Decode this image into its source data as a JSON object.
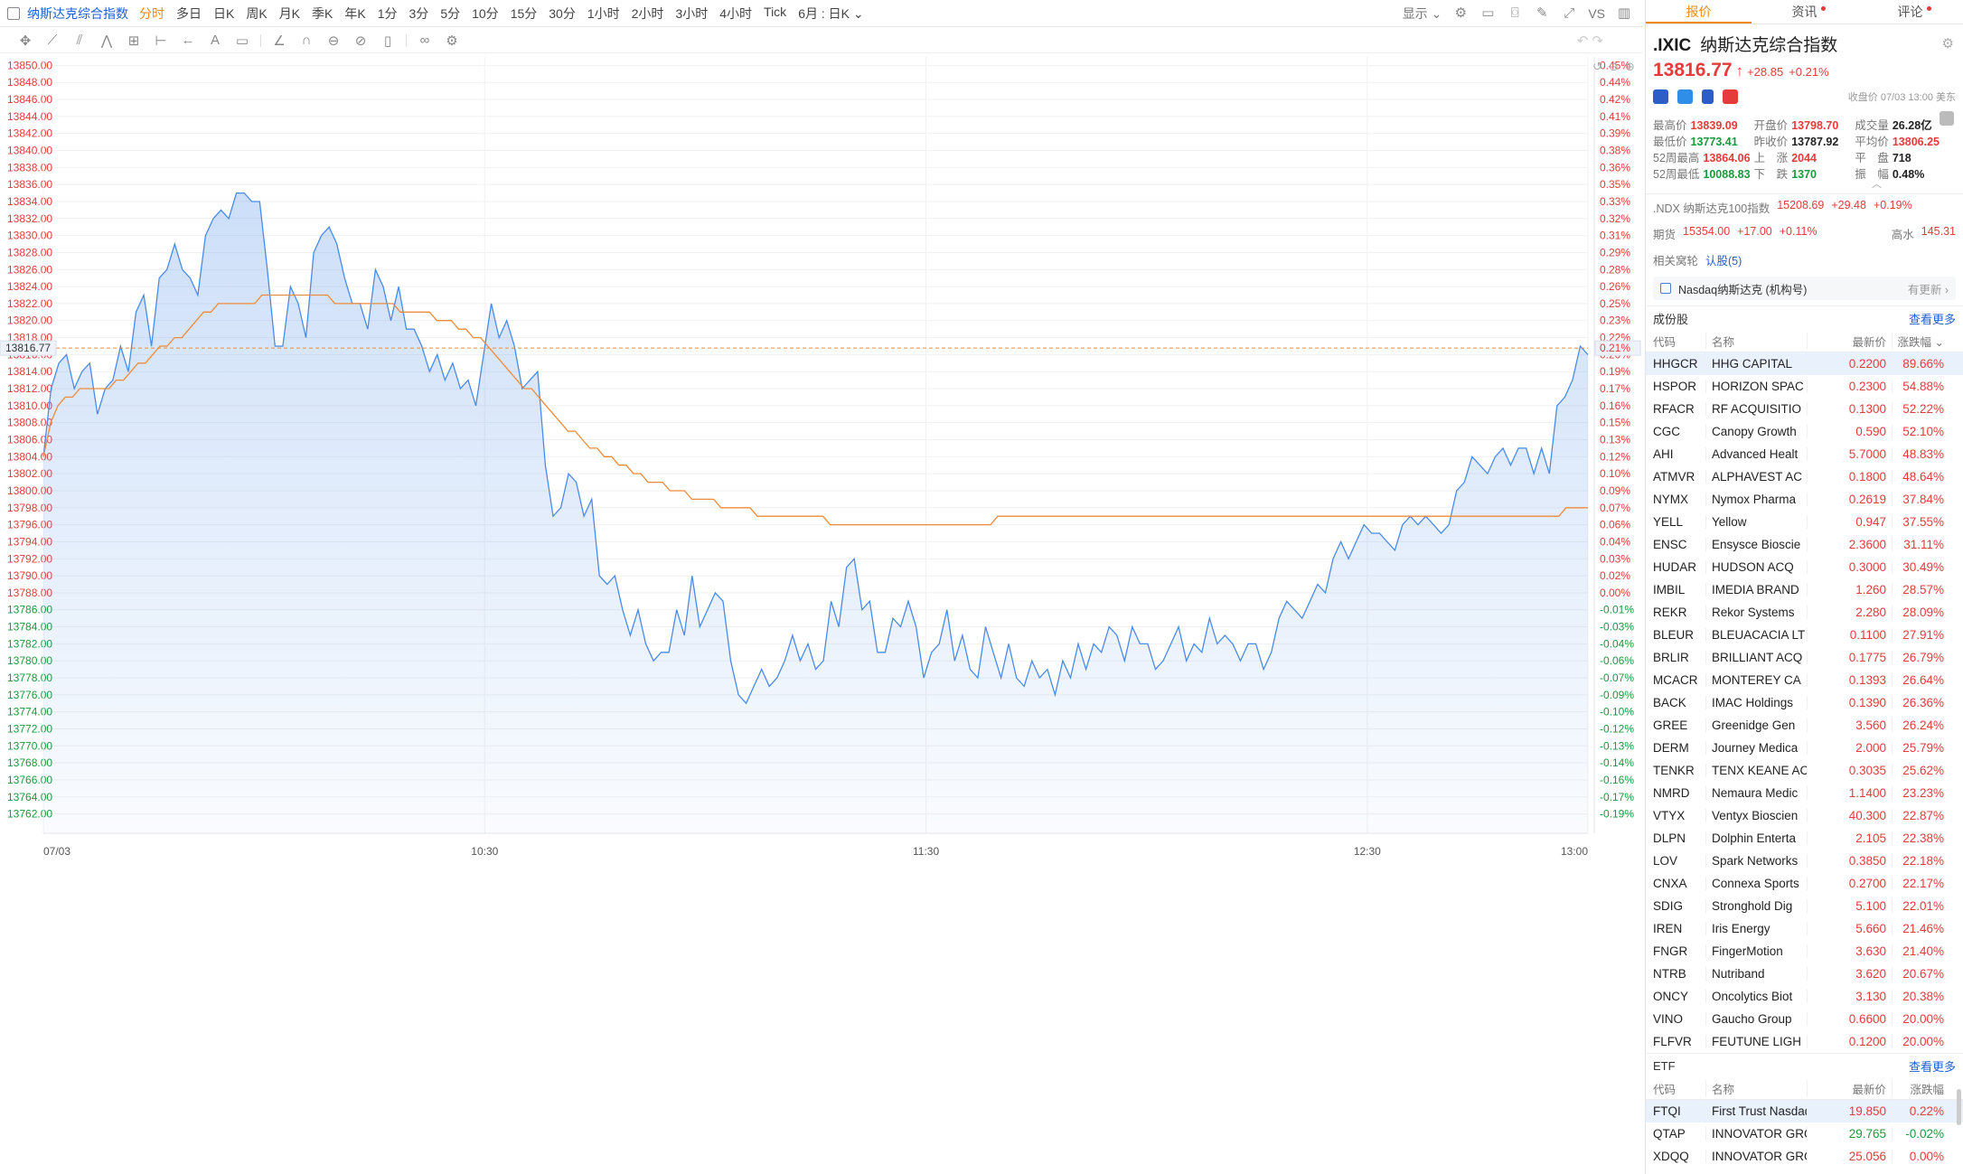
{
  "topbar": {
    "symbol": "纳斯达克综合指数",
    "periods": [
      "分时",
      "多日",
      "日K",
      "周K",
      "月K",
      "季K",
      "年K",
      "1分",
      "3分",
      "5分",
      "10分",
      "15分",
      "30分",
      "1小时",
      "2小时",
      "3小时",
      "4小时",
      "Tick"
    ],
    "active_period": "分时",
    "period_select": "6月 : 日K",
    "display_label": "显示",
    "vs_label": "VS"
  },
  "chart_data": {
    "type": "line",
    "series": [
      {
        "name": "price",
        "color": "#4a8be8"
      },
      {
        "name": "avg",
        "color": "#f08b3c"
      }
    ],
    "prev_close": 13787.92,
    "current": 13816.77,
    "current_label": "13816.77",
    "current_pct_label": "0.21%",
    "ylim": [
      13761,
      13851
    ],
    "xlim_minutes": [
      0,
      210
    ],
    "x_ticks": [
      {
        "t": 0,
        "label": "07/03"
      },
      {
        "t": 60,
        "label": "10:30"
      },
      {
        "t": 120,
        "label": "11:30"
      },
      {
        "t": 180,
        "label": "12:30"
      },
      {
        "t": 210,
        "label": "13:00"
      }
    ],
    "y_ticks": [
      "13850.00",
      "13848.00",
      "13846.00",
      "13844.00",
      "13842.00",
      "13840.00",
      "13838.00",
      "13836.00",
      "13834.00",
      "13832.00",
      "13830.00",
      "13828.00",
      "13826.00",
      "13824.00",
      "13822.00",
      "13820.00",
      "13818.00",
      "13816.00",
      "13814.00",
      "13812.00",
      "13810.00",
      "13808.00",
      "13806.00",
      "13804.00",
      "13802.00",
      "13800.00",
      "13798.00",
      "13796.00",
      "13794.00",
      "13792.00",
      "13790.00",
      "13788.00",
      "13786.00",
      "13784.00",
      "13782.00",
      "13780.00",
      "13778.00",
      "13776.00",
      "13774.00",
      "13772.00",
      "13770.00",
      "13768.00",
      "13766.00",
      "13764.00",
      "13762.00"
    ],
    "pct_ticks": [
      "0.45%",
      "0.44%",
      "0.42%",
      "0.41%",
      "0.39%",
      "0.38%",
      "0.36%",
      "0.35%",
      "0.33%",
      "0.32%",
      "0.31%",
      "0.29%",
      "0.28%",
      "0.26%",
      "0.25%",
      "0.23%",
      "0.22%",
      "0.20%",
      "0.19%",
      "0.17%",
      "0.16%",
      "0.15%",
      "0.13%",
      "0.12%",
      "0.10%",
      "0.09%",
      "0.07%",
      "0.06%",
      "0.04%",
      "0.03%",
      "0.02%",
      "0.00%",
      "-0.01%",
      "-0.03%",
      "-0.04%",
      "-0.06%",
      "-0.07%",
      "-0.09%",
      "-0.10%",
      "-0.12%",
      "-0.13%",
      "-0.14%",
      "-0.16%",
      "-0.17%",
      "-0.19%"
    ],
    "price": [
      13804,
      13812,
      13815,
      13816,
      13812,
      13814,
      13815,
      13809,
      13812,
      13813,
      13817,
      13814,
      13821,
      13823,
      13817,
      13825,
      13826,
      13829,
      13826,
      13825,
      13823,
      13830,
      13832,
      13833,
      13832,
      13835,
      13835,
      13834,
      13834,
      13826,
      13817,
      13817,
      13824,
      13822,
      13818,
      13828,
      13830,
      13831,
      13829,
      13825,
      13822,
      13822,
      13819,
      13826,
      13824,
      13820,
      13824,
      13819,
      13819,
      13817,
      13814,
      13816,
      13813,
      13815,
      13812,
      13813,
      13810,
      13816,
      13822,
      13818,
      13820,
      13817,
      13812,
      13813,
      13814,
      13803,
      13797,
      13798,
      13802,
      13801,
      13797,
      13799,
      13790,
      13789,
      13790,
      13786,
      13783,
      13786,
      13782,
      13780,
      13781,
      13781,
      13786,
      13783,
      13790,
      13784,
      13786,
      13788,
      13787,
      13780,
      13776,
      13775,
      13777,
      13779,
      13777,
      13778,
      13780,
      13783,
      13780,
      13782,
      13779,
      13780,
      13787,
      13784,
      13791,
      13792,
      13786,
      13787,
      13781,
      13781,
      13785,
      13784,
      13787,
      13784,
      13778,
      13781,
      13782,
      13786,
      13780,
      13783,
      13779,
      13778,
      13784,
      13781,
      13778,
      13782,
      13778,
      13777,
      13780,
      13778,
      13779,
      13776,
      13780,
      13778,
      13782,
      13779,
      13782,
      13781,
      13784,
      13783,
      13780,
      13784,
      13782,
      13782,
      13779,
      13780,
      13782,
      13784,
      13780,
      13782,
      13781,
      13785,
      13782,
      13783,
      13782,
      13780,
      13782,
      13782,
      13779,
      13781,
      13785,
      13787,
      13786,
      13785,
      13787,
      13789,
      13788,
      13792,
      13794,
      13792,
      13794,
      13796,
      13795,
      13795,
      13794,
      13793,
      13796,
      13797,
      13796,
      13797,
      13796,
      13795,
      13796,
      13800,
      13801,
      13804,
      13803,
      13802,
      13804,
      13805,
      13803,
      13805,
      13805,
      13802,
      13805,
      13802,
      13810,
      13811,
      13813,
      13817,
      13816
    ],
    "avg": [
      13804,
      13808,
      13810,
      13811,
      13811,
      13812,
      13812,
      13812,
      13812,
      13812,
      13813,
      13813,
      13814,
      13815,
      13815,
      13816,
      13817,
      13817,
      13818,
      13818,
      13819,
      13820,
      13821,
      13821,
      13822,
      13822,
      13822,
      13822,
      13822,
      13822,
      13823,
      13823,
      13823,
      13823,
      13823,
      13823,
      13823,
      13823,
      13823,
      13823,
      13822,
      13822,
      13822,
      13822,
      13822,
      13822,
      13822,
      13822,
      13822,
      13821,
      13821,
      13821,
      13821,
      13821,
      13820,
      13820,
      13820,
      13819,
      13819,
      13818,
      13818,
      13817,
      13816,
      13815,
      13814,
      13813,
      13812,
      13812,
      13811,
      13810,
      13809,
      13808,
      13807,
      13807,
      13806,
      13805,
      13805,
      13804,
      13804,
      13803,
      13803,
      13802,
      13802,
      13801,
      13801,
      13801,
      13800,
      13800,
      13800,
      13799,
      13799,
      13799,
      13799,
      13798,
      13798,
      13798,
      13798,
      13798,
      13797,
      13797,
      13797,
      13797,
      13797,
      13797,
      13797,
      13797,
      13797,
      13797,
      13796,
      13796,
      13796,
      13796,
      13796,
      13796,
      13796,
      13796,
      13796,
      13796,
      13796,
      13796,
      13796,
      13796,
      13796,
      13796,
      13796,
      13796,
      13796,
      13796,
      13796,
      13796,
      13796,
      13797,
      13797,
      13797,
      13797,
      13797,
      13797,
      13797,
      13797,
      13797,
      13797,
      13797,
      13797,
      13797,
      13797,
      13797,
      13797,
      13797,
      13797,
      13797,
      13797,
      13797,
      13797,
      13797,
      13797,
      13797,
      13797,
      13797,
      13797,
      13797,
      13797,
      13797,
      13797,
      13797,
      13797,
      13797,
      13797,
      13797,
      13797,
      13797,
      13797,
      13797,
      13797,
      13797,
      13797,
      13797,
      13797,
      13797,
      13797,
      13797,
      13797,
      13797,
      13797,
      13797,
      13797,
      13797,
      13797,
      13797,
      13797,
      13797,
      13797,
      13797,
      13797,
      13797,
      13797,
      13797,
      13797,
      13797,
      13797,
      13797,
      13797,
      13797,
      13797,
      13797,
      13797,
      13797,
      13797,
      13797,
      13797,
      13798,
      13798,
      13798,
      13798
    ]
  },
  "panel": {
    "tabs": [
      "报价",
      "资讯",
      "评论"
    ],
    "code": ".IXIC",
    "name": "纳斯达克综合指数",
    "price": "13816.77",
    "arrow": "↑",
    "change": "+28.85",
    "pct": "+0.21%",
    "close_note": "收盘价 07/03 13:00 美东",
    "stats": [
      [
        {
          "label": "最高价",
          "value": "13839.09",
          "tone": "red"
        },
        {
          "label": "开盘价",
          "value": "13798.70",
          "tone": "red"
        },
        {
          "label": "成交量",
          "value": "26.28亿",
          "tone": "dark"
        }
      ],
      [
        {
          "label": "最低价",
          "value": "13773.41",
          "tone": "green"
        },
        {
          "label": "昨收价",
          "value": "13787.92",
          "tone": "dark"
        },
        {
          "label": "平均价",
          "value": "13806.25",
          "tone": "red"
        }
      ],
      [
        {
          "label": "52周最高",
          "value": "13864.06",
          "tone": "red"
        },
        {
          "label": "上　涨",
          "value": "2044",
          "tone": "red"
        },
        {
          "label": "平　盘",
          "value": "718",
          "tone": "dark"
        }
      ],
      [
        {
          "label": "52周最低",
          "value": "10088.83",
          "tone": "green"
        },
        {
          "label": "下　跌",
          "value": "1370",
          "tone": "green"
        },
        {
          "label": "振　幅",
          "value": "0.48%",
          "tone": "dark"
        }
      ]
    ],
    "ndx": {
      "label": ".NDX 纳斯达克100指数",
      "price": "15208.69",
      "chg": "+29.48",
      "pct": "+0.19%"
    },
    "futures": {
      "label": "期货",
      "price": "15354.00",
      "chg": "+17.00",
      "pct": "+0.11%",
      "high_label": "高水",
      "high_value": "145.31"
    },
    "warrants": {
      "label": "相关窝轮",
      "value": "认股(5)"
    },
    "notice": {
      "text": "Nasdaq纳斯达克 (机构号)",
      "more": "有更新"
    },
    "constituents": {
      "title": "成份股",
      "more": "查看更多",
      "headers": [
        "代码",
        "名称",
        "最新价",
        "涨跌幅"
      ],
      "rows": [
        [
          "HHGCR",
          "HHG CAPITAL",
          "0.2200",
          "89.66%"
        ],
        [
          "HSPOR",
          "HORIZON SPAC",
          "0.2300",
          "54.88%"
        ],
        [
          "RFACR",
          "RF ACQUISITIO",
          "0.1300",
          "52.22%"
        ],
        [
          "CGC",
          "Canopy Growth",
          "0.590",
          "52.10%"
        ],
        [
          "AHI",
          "Advanced Healt",
          "5.7000",
          "48.83%"
        ],
        [
          "ATMVR",
          "ALPHAVEST AC",
          "0.1800",
          "48.64%"
        ],
        [
          "NYMX",
          "Nymox Pharma",
          "0.2619",
          "37.84%"
        ],
        [
          "YELL",
          "Yellow",
          "0.947",
          "37.55%"
        ],
        [
          "ENSC",
          "Ensysce Bioscie",
          "2.3600",
          "31.11%"
        ],
        [
          "HUDAR",
          "HUDSON ACQ",
          "0.3000",
          "30.49%"
        ],
        [
          "IMBIL",
          "IMEDIA BRAND",
          "1.260",
          "28.57%"
        ],
        [
          "REKR",
          "Rekor Systems",
          "2.280",
          "28.09%"
        ],
        [
          "BLEUR",
          "BLEUACACIA LT",
          "0.1100",
          "27.91%"
        ],
        [
          "BRLIR",
          "BRILLIANT ACQ",
          "0.1775",
          "26.79%"
        ],
        [
          "MCACR",
          "MONTEREY CA",
          "0.1393",
          "26.64%"
        ],
        [
          "BACK",
          "IMAC Holdings",
          "0.1390",
          "26.36%"
        ],
        [
          "GREE",
          "Greenidge Gen",
          "3.560",
          "26.24%"
        ],
        [
          "DERM",
          "Journey Medica",
          "2.000",
          "25.79%"
        ],
        [
          "TENKR",
          "TENX KEANE AC",
          "0.3035",
          "25.62%"
        ],
        [
          "NMRD",
          "Nemaura Medic",
          "1.1400",
          "23.23%"
        ],
        [
          "VTYX",
          "Ventyx Bioscien",
          "40.300",
          "22.87%"
        ],
        [
          "DLPN",
          "Dolphin Enterta",
          "2.105",
          "22.38%"
        ],
        [
          "LOV",
          "Spark Networks",
          "0.3850",
          "22.18%"
        ],
        [
          "CNXA",
          "Connexa Sports",
          "0.2700",
          "22.17%"
        ],
        [
          "SDIG",
          "Stronghold Dig",
          "5.100",
          "22.01%"
        ],
        [
          "IREN",
          "Iris Energy",
          "5.660",
          "21.46%"
        ],
        [
          "FNGR",
          "FingerMotion",
          "3.630",
          "21.40%"
        ],
        [
          "NTRB",
          "Nutriband",
          "3.620",
          "20.67%"
        ],
        [
          "ONCY",
          "Oncolytics Biot",
          "3.130",
          "20.38%"
        ],
        [
          "VINO",
          "Gaucho Group",
          "0.6600",
          "20.00%"
        ],
        [
          "FLFVR",
          "FEUTUNE LIGH",
          "0.1200",
          "20.00%"
        ]
      ]
    },
    "etf": {
      "title": "ETF",
      "more": "查看更多",
      "headers": [
        "代码",
        "名称",
        "最新价",
        "涨跌幅"
      ],
      "rows": [
        [
          "FTQI",
          "First Trust Nasdaq",
          "19.850",
          "0.22%",
          "up"
        ],
        [
          "QTAP",
          "INNOVATOR GRO",
          "29.765",
          "-0.02%",
          "down"
        ],
        [
          "XDQQ",
          "INNOVATOR GRO",
          "25.056",
          "0.00%",
          "flat"
        ]
      ]
    }
  }
}
